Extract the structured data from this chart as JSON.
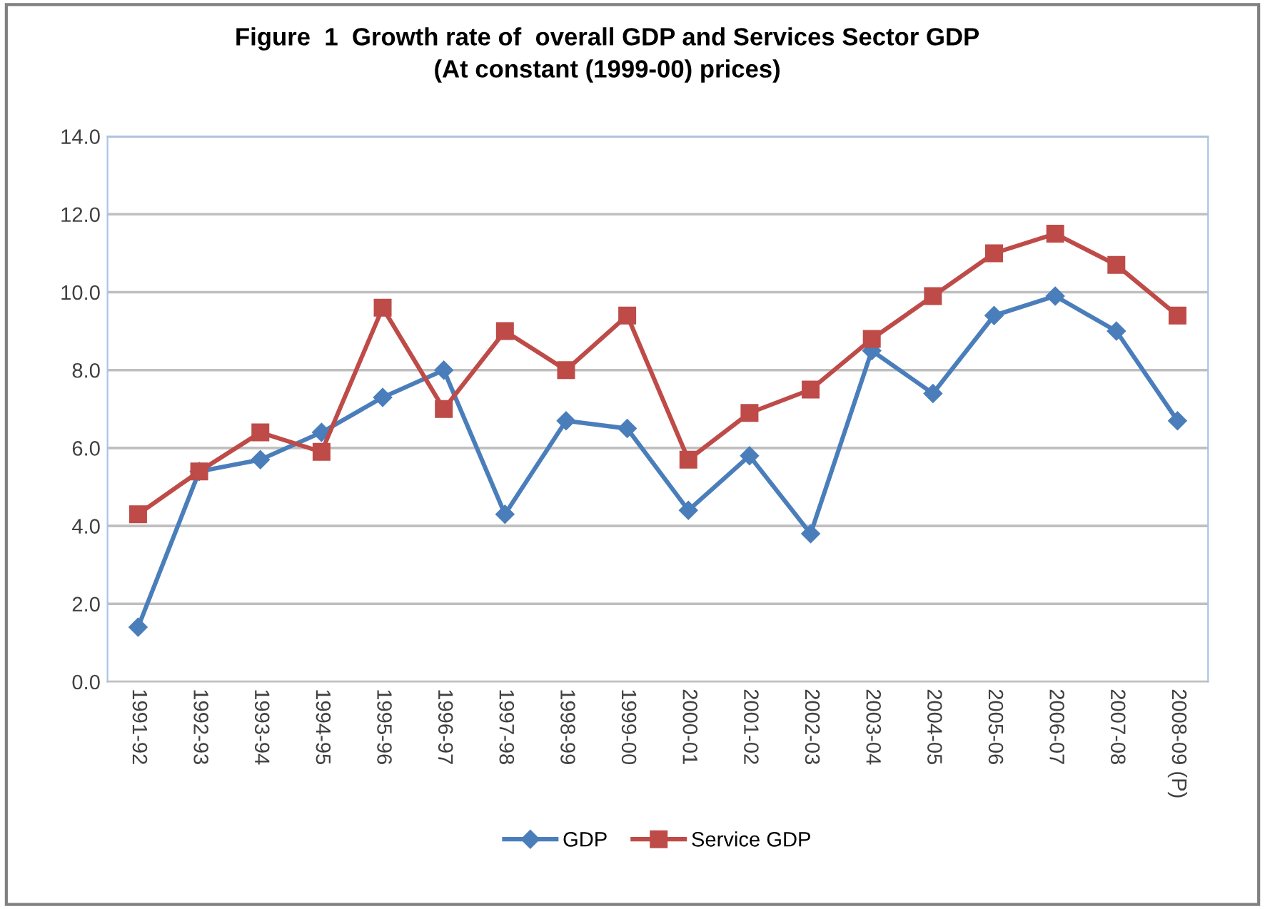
{
  "chart_data": {
    "type": "line",
    "title": "Figure  1  Growth rate of  overall GDP and Services Sector GDP\n(At constant (1999-00) prices)",
    "categories": [
      "1991-92",
      "1992-93",
      "1993-94",
      "1994-95",
      "1995-96",
      "1996-97",
      "1997-98",
      "1998-99",
      "1999-00",
      "2000-01",
      "2001-02",
      "2002-03",
      "2003-04",
      "2004-05",
      "2005-06",
      "2006-07",
      "2007-08",
      "2008-09 (P)"
    ],
    "series": [
      {
        "name": "GDP",
        "color": "#4a7ebb",
        "marker": "diamond",
        "values": [
          1.4,
          5.4,
          5.7,
          6.4,
          7.3,
          8.0,
          4.3,
          6.7,
          6.5,
          4.4,
          5.8,
          3.8,
          8.5,
          7.4,
          9.4,
          9.9,
          9.0,
          6.7
        ]
      },
      {
        "name": "Service GDP",
        "color": "#be4b48",
        "marker": "square",
        "values": [
          4.3,
          5.4,
          6.4,
          5.9,
          9.6,
          7.0,
          9.0,
          8.0,
          9.4,
          5.7,
          6.9,
          7.5,
          8.8,
          9.9,
          11.0,
          11.5,
          10.7,
          9.4
        ]
      }
    ],
    "ylim": [
      0,
      14
    ],
    "yticks": [
      {
        "value": 0,
        "label": "0.0"
      },
      {
        "value": 2,
        "label": "2.0"
      },
      {
        "value": 4,
        "label": "4.0"
      },
      {
        "value": 6,
        "label": "6.0"
      },
      {
        "value": 8,
        "label": "8.0"
      },
      {
        "value": 10,
        "label": "10.0"
      },
      {
        "value": 12,
        "label": "12.0"
      },
      {
        "value": 14,
        "label": "14.0"
      }
    ],
    "grid": "y",
    "legend": "bottom",
    "line_style": "solid"
  }
}
